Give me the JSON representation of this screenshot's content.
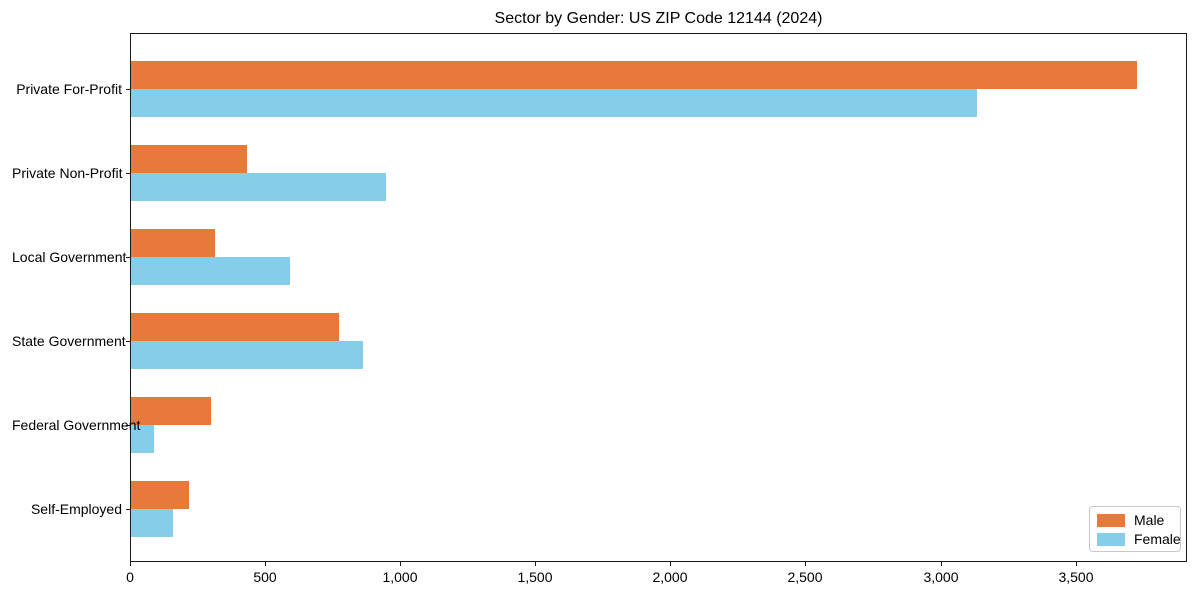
{
  "chart_data": {
    "type": "bar",
    "orientation": "horizontal",
    "title": "Sector by Gender: US ZIP Code 12144 (2024)",
    "categories": [
      "Private For-Profit",
      "Private Non-Profit",
      "Local Government",
      "State Government",
      "Federal Government",
      "Self-Employed"
    ],
    "series": [
      {
        "name": "Male",
        "color": "#E7793A",
        "values": [
          3725,
          430,
          310,
          770,
          295,
          215
        ]
      },
      {
        "name": "Female",
        "color": "#85CDE8",
        "values": [
          3130,
          945,
          590,
          860,
          85,
          155
        ]
      }
    ],
    "xlabel": "",
    "ylabel": "",
    "xlim": [
      0,
      3912
    ],
    "xticks": [
      0,
      500,
      1000,
      1500,
      2000,
      2500,
      3000,
      3500
    ],
    "xtick_labels": [
      "0",
      "500",
      "1,000",
      "1,500",
      "2,000",
      "2,500",
      "3,000",
      "3,500"
    ],
    "grid": false,
    "legend": {
      "position": "lower right",
      "entries": [
        "Male",
        "Female"
      ]
    },
    "colors": {
      "axis": "#1a1a1a",
      "legend_border": "#c8c8c8",
      "background": "#ffffff"
    }
  }
}
